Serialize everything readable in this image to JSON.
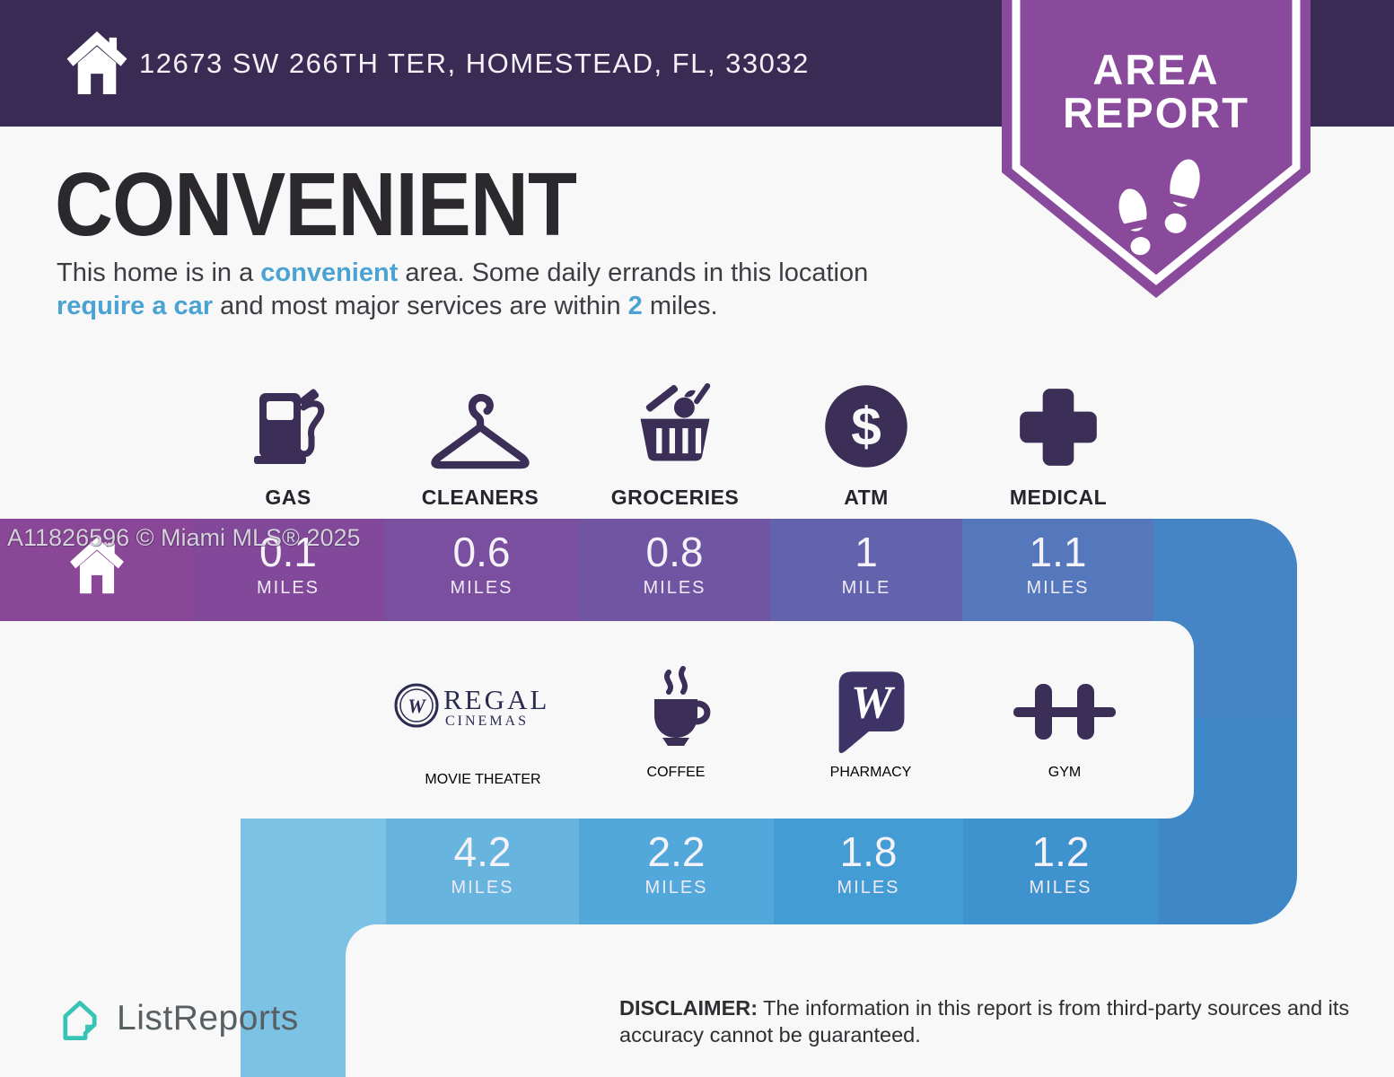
{
  "header": {
    "address": "12673 SW 266TH TER, HOMESTEAD, FL, 33032"
  },
  "badge": {
    "line1": "AREA",
    "line2": "REPORT"
  },
  "headline": "CONVENIENT",
  "description": {
    "parts": [
      {
        "text": "This home is in a ",
        "accent": false
      },
      {
        "text": "convenient",
        "accent": true
      },
      {
        "text": " area. Some daily errands in this location ",
        "accent": false
      },
      {
        "text": "require a car",
        "accent": true
      },
      {
        "text": " and most major services are within ",
        "accent": false
      },
      {
        "text": "2",
        "accent": true
      },
      {
        "text": " miles.",
        "accent": false
      }
    ]
  },
  "watermark": "A11826596 © Miami MLS® 2025",
  "amenities_row1": [
    {
      "label": "GAS",
      "distance": "0.1",
      "unit": "MILES"
    },
    {
      "label": "CLEANERS",
      "distance": "0.6",
      "unit": "MILES"
    },
    {
      "label": "GROCERIES",
      "distance": "0.8",
      "unit": "MILES"
    },
    {
      "label": "ATM",
      "distance": "1",
      "unit": "MILE"
    },
    {
      "label": "MEDICAL",
      "distance": "1.1",
      "unit": "MILES"
    }
  ],
  "amenities_row2": [
    {
      "label": "MOVIE THEATER",
      "distance": "4.2",
      "unit": "MILES"
    },
    {
      "label": "COFFEE",
      "distance": "2.2",
      "unit": "MILES"
    },
    {
      "label": "PHARMACY",
      "distance": "1.8",
      "unit": "MILES"
    },
    {
      "label": "GYM",
      "distance": "1.2",
      "unit": "MILES"
    }
  ],
  "icons": {
    "atm_symbol": "$",
    "walgreens_w": "W",
    "regal_w": "W",
    "regal_line1": "REGAL",
    "regal_line2": "CINEMAS"
  },
  "footer": {
    "brand": "ListReports",
    "disclaimer_label": "DISCLAIMER:",
    "disclaimer_text": " The information in this report is from third-party sources and its accuracy cannot be guaranteed."
  },
  "colors": {
    "header_bg": "#3a2b55",
    "badge_purple": "#8a4a9c",
    "accent_text": "#4aa3d2",
    "icon_purple": "#3b2e57",
    "walgreens_purple": "#3e3366",
    "regal_navy": "#2b2b52",
    "listreports_teal": "#35c4b5",
    "page_bg": "#f8f8f9",
    "bar1_segments": [
      "#8b4797",
      "#82499b",
      "#7a4f9f",
      "#7055a3",
      "#6263ac",
      "#5578bd",
      "#4584c5"
    ],
    "connector_top": "#4584c5",
    "connector_bottom": "#3f88c8",
    "bar2_segments": [
      "#7cc2e5",
      "#67b4df",
      "#52a8da",
      "#439cd4",
      "#3e92cd"
    ],
    "tail_blue": "#7cc2e5"
  }
}
